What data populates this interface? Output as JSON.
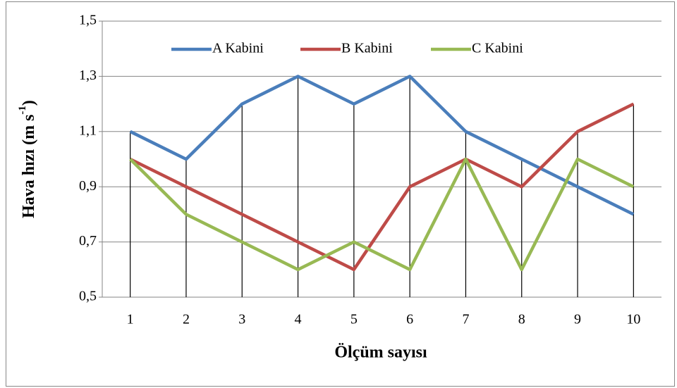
{
  "chart_data": {
    "type": "line",
    "xlabel": "Ölçüm sayısı",
    "ylabel": {
      "text": "Hava hızı (m s",
      "sup": "-1",
      "end": ")"
    },
    "categories": [
      "1",
      "2",
      "3",
      "4",
      "5",
      "6",
      "7",
      "8",
      "9",
      "10"
    ],
    "series": [
      {
        "name": "A Kabini",
        "color": "#4a7ebb",
        "values": [
          1.1,
          1.0,
          1.2,
          1.3,
          1.2,
          1.3,
          1.1,
          1.0,
          0.9,
          0.8
        ]
      },
      {
        "name": "B Kabini",
        "color": "#be4b48",
        "values": [
          1.0,
          0.9,
          0.8,
          0.7,
          0.6,
          0.9,
          1.0,
          0.9,
          1.1,
          1.2
        ]
      },
      {
        "name": "C Kabini",
        "color": "#98b954",
        "values": [
          1.0,
          0.8,
          0.7,
          0.6,
          0.7,
          0.6,
          1.0,
          0.6,
          1.0,
          0.9
        ]
      }
    ],
    "ylim": [
      0.5,
      1.5
    ],
    "yticks": [
      {
        "value": 0.5,
        "label": "0,5"
      },
      {
        "value": 0.7,
        "label": "0,7"
      },
      {
        "value": 0.9,
        "label": "0,9"
      },
      {
        "value": 1.1,
        "label": "1,1"
      },
      {
        "value": 1.3,
        "label": "1,3"
      },
      {
        "value": 1.5,
        "label": "1,5"
      }
    ],
    "grid": true,
    "drop_lines": true,
    "legend": "top"
  }
}
